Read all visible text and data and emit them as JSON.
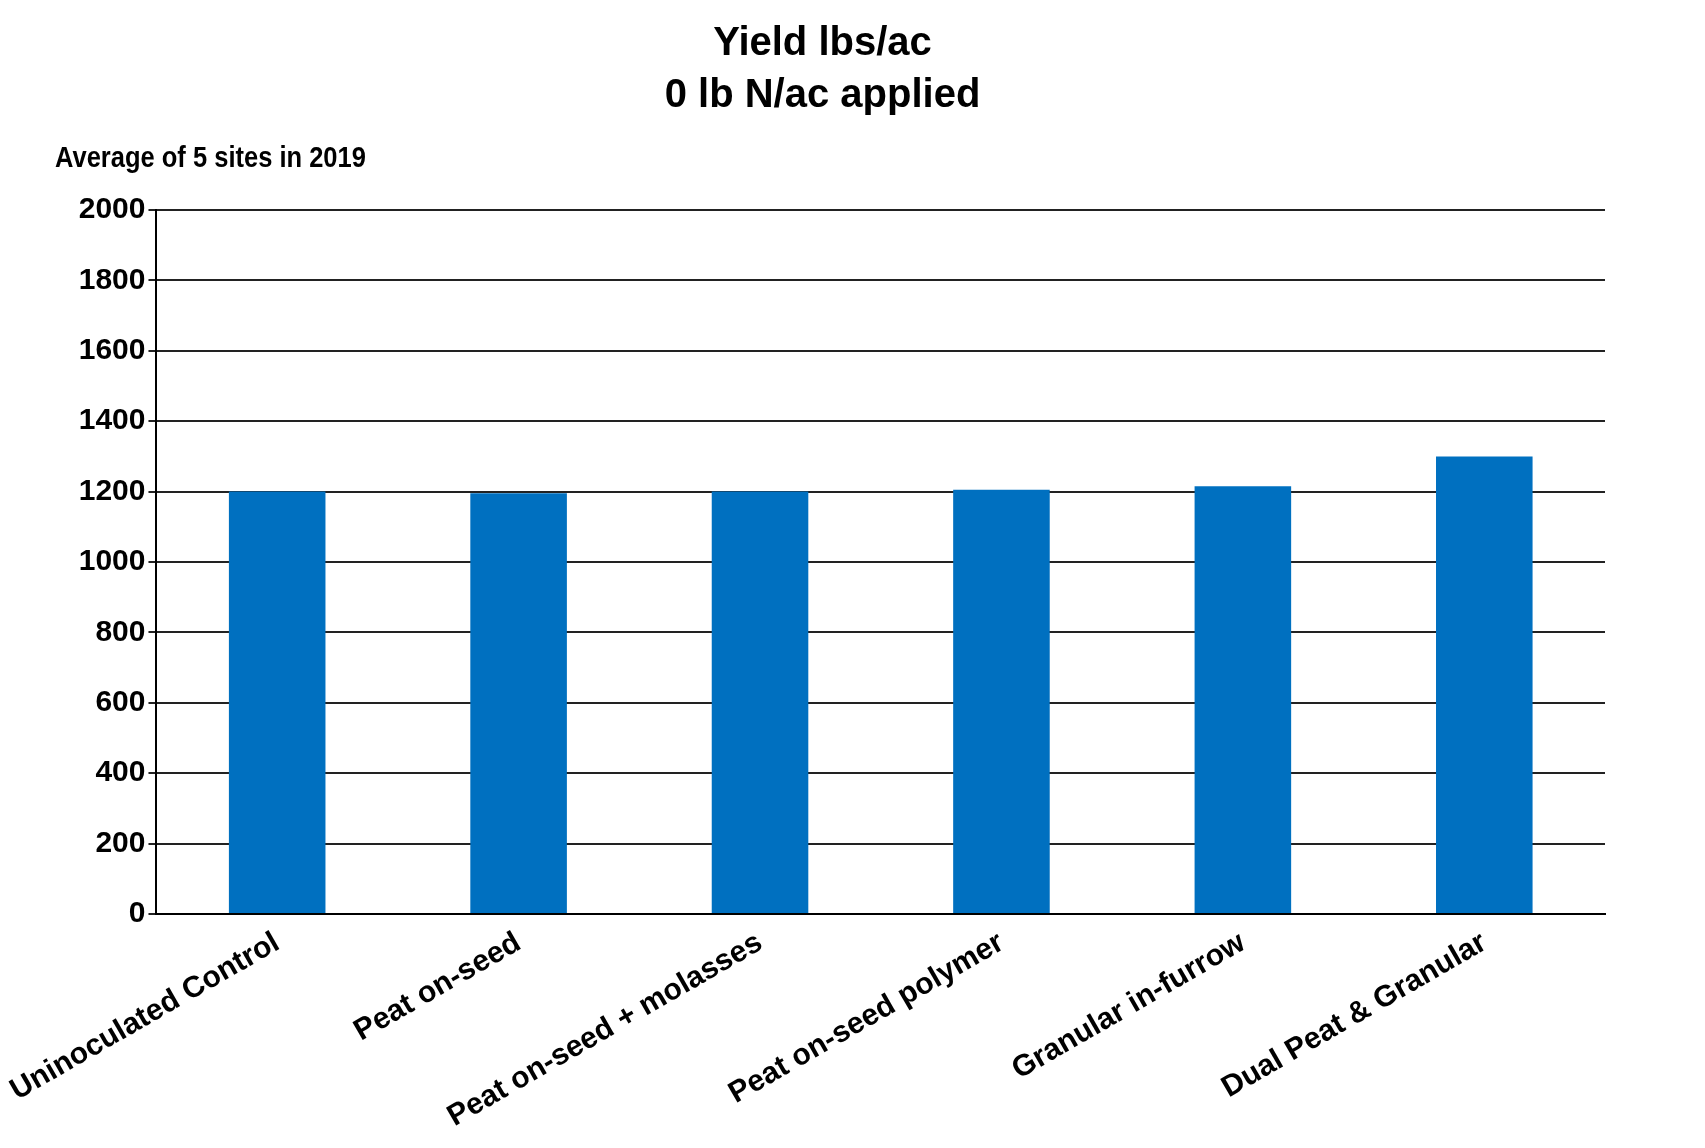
{
  "chart_data": {
    "type": "bar",
    "title": "Yield lbs/ac",
    "subtitle": "0 lb N/ac applied",
    "annotations": [
      "Average of 5 sites in 2019"
    ],
    "categories": [
      "Uninoculated Control",
      "Peat on-seed",
      "Peat on-seed + molasses",
      "Peat on-seed polymer",
      "Granular in-furrow",
      "Dual Peat & Granular"
    ],
    "values": [
      1200,
      1195,
      1200,
      1205,
      1215,
      1300
    ],
    "color": "#0070c0",
    "ylim": [
      0,
      2000
    ],
    "yticks": [
      0,
      200,
      400,
      600,
      800,
      1000,
      1200,
      1400,
      1600,
      1800,
      2000
    ],
    "grid": "y",
    "legend": false
  }
}
